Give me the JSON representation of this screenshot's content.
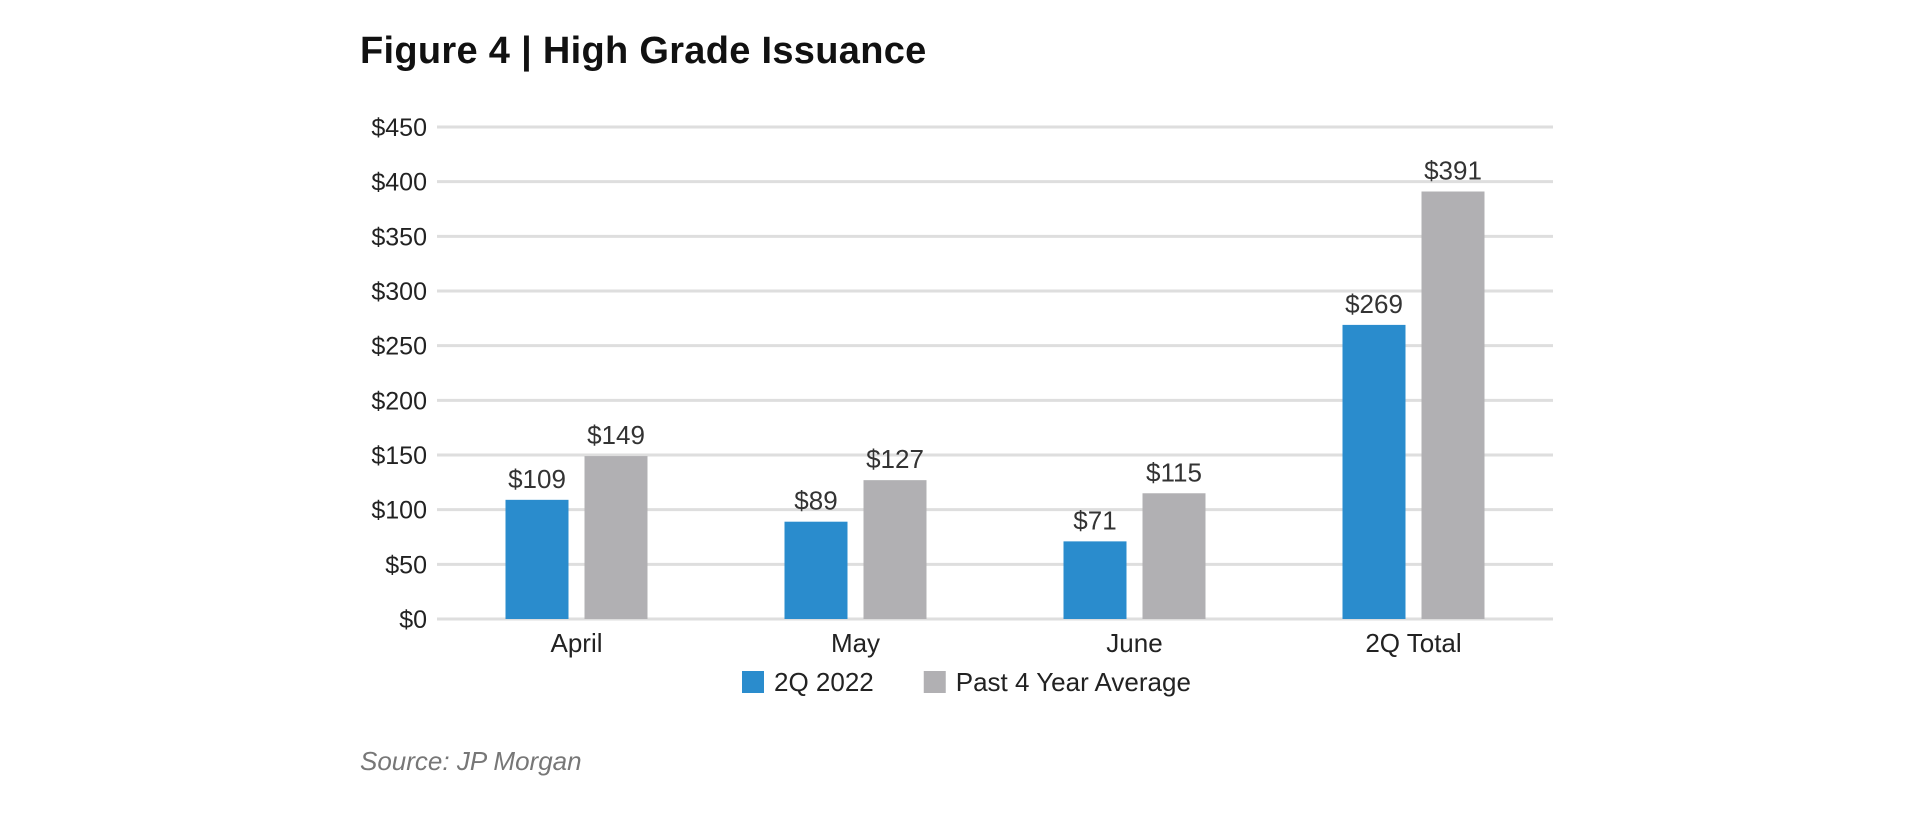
{
  "chart_data": {
    "type": "bar",
    "title": "Figure 4  |  High Grade Issuance",
    "categories": [
      "April",
      "May",
      "June",
      "2Q Total"
    ],
    "series": [
      {
        "name": "2Q 2022",
        "values": [
          109,
          89,
          71,
          269
        ],
        "labels": [
          "$109",
          "$89",
          "$71",
          "$269"
        ],
        "color": "#2a8ccd"
      },
      {
        "name": "Past 4 Year Average",
        "values": [
          149,
          127,
          115,
          391
        ],
        "labels": [
          "$149",
          "$127",
          "$115",
          "$391"
        ],
        "color": "#b1b0b3"
      }
    ],
    "yticks": [
      0,
      50,
      100,
      150,
      200,
      250,
      300,
      350,
      400,
      450
    ],
    "ytick_labels": [
      "$0",
      "$50",
      "$100",
      "$150",
      "$200",
      "$250",
      "$300",
      "$350",
      "$400",
      "$450"
    ],
    "ylim": [
      0,
      450
    ],
    "xlabel": "",
    "ylabel": "",
    "grid": true,
    "legend": "bottom-center",
    "source": "Source: JP Morgan"
  }
}
